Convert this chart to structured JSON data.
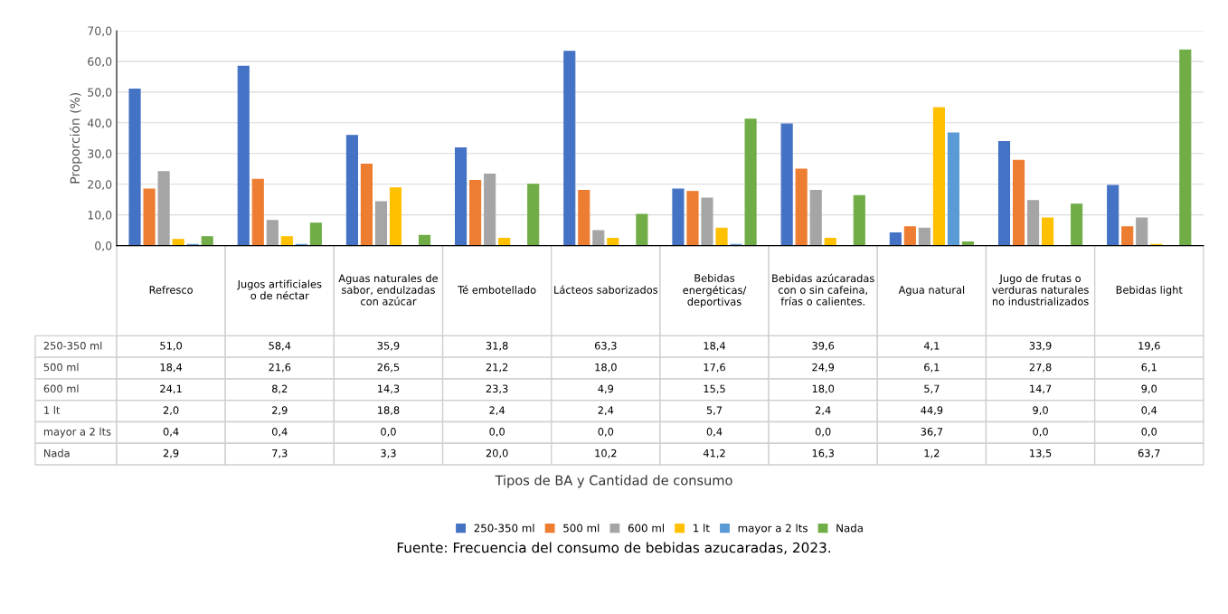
{
  "chart_data": {
    "type": "bar",
    "ylabel": "Proporción (%)",
    "categories": [
      "Refresco",
      "Jugos artificiales o de néctar",
      "Aguas naturales de sabor, endulzadas con azúcar",
      "Té embotellado",
      "Lácteos saborizados",
      "Bebidas energéticas/ deportivas",
      "Bebidas azúcaradas con o sin cafeina, frías o calientes.",
      "Agua natural",
      "Jugo de frutas o verduras naturales no industrializados",
      "Bebidas light"
    ],
    "series": [
      {
        "name": "250-350 ml",
        "color": "#4472c4",
        "values": [
          51.0,
          58.4,
          35.9,
          31.8,
          63.3,
          18.4,
          39.6,
          4.1,
          33.9,
          19.6
        ],
        "value_labels": [
          "51,0",
          "58,4",
          "35,9",
          "31,8",
          "63,3",
          "18,4",
          "39,6",
          "4,1",
          "33,9",
          "19,6"
        ]
      },
      {
        "name": "500 ml",
        "color": "#ed7d31",
        "values": [
          18.4,
          21.6,
          26.5,
          21.2,
          18.0,
          17.6,
          24.9,
          6.1,
          27.8,
          6.1
        ],
        "value_labels": [
          "18,4",
          "21,6",
          "26,5",
          "21,2",
          "18,0",
          "17,6",
          "24,9",
          "6,1",
          "27,8",
          "6,1"
        ]
      },
      {
        "name": "600 ml",
        "color": "#a5a5a5",
        "values": [
          24.1,
          8.2,
          14.3,
          23.3,
          4.9,
          15.5,
          18.0,
          5.7,
          14.7,
          9.0
        ],
        "value_labels": [
          "24,1",
          "8,2",
          "14,3",
          "23,3",
          "4,9",
          "15,5",
          "18,0",
          "5,7",
          "14,7",
          "9,0"
        ]
      },
      {
        "name": "1 lt",
        "color": "#ffc000",
        "values": [
          2.0,
          2.9,
          18.8,
          2.4,
          2.4,
          5.7,
          2.4,
          44.9,
          9.0,
          0.4
        ],
        "value_labels": [
          "2,0",
          "2,9",
          "18,8",
          "2,4",
          "2,4",
          "5,7",
          "2,4",
          "44,9",
          "9,0",
          "0,4"
        ]
      },
      {
        "name": "mayor a 2 lts",
        "color": "#5b9bd5",
        "values": [
          0.4,
          0.4,
          0.0,
          0.0,
          0.0,
          0.4,
          0.0,
          36.7,
          0.0,
          0.0
        ],
        "value_labels": [
          "0,4",
          "0,4",
          "0,0",
          "0,0",
          "0,0",
          "0,4",
          "0,0",
          "36,7",
          "0,0",
          "0,0"
        ]
      },
      {
        "name": "Nada",
        "color": "#70ad47",
        "values": [
          2.9,
          7.3,
          3.3,
          20.0,
          10.2,
          41.2,
          16.3,
          1.2,
          13.5,
          63.7
        ],
        "value_labels": [
          "2,9",
          "7,3",
          "3,3",
          "20,0",
          "10,2",
          "41,2",
          "16,3",
          "1,2",
          "13,5",
          "63,7"
        ]
      }
    ],
    "ylim": [
      0,
      70
    ],
    "yticks": [
      {
        "value": 0,
        "label": "0,0"
      },
      {
        "value": 10,
        "label": "10,0"
      },
      {
        "value": 20,
        "label": "20,0"
      },
      {
        "value": 30,
        "label": "30,0"
      },
      {
        "value": 40,
        "label": "40,0"
      },
      {
        "value": 50,
        "label": "50,0"
      },
      {
        "value": 60,
        "label": "60,0"
      },
      {
        "value": 70,
        "label": "70,0"
      }
    ],
    "grid": "y",
    "legend": "bottom",
    "annotations": [
      "Tipos de BA y Cantidad de consumo",
      "Fuente: Frecuencia del consumo de bebidas azucaradas, 2023."
    ]
  }
}
